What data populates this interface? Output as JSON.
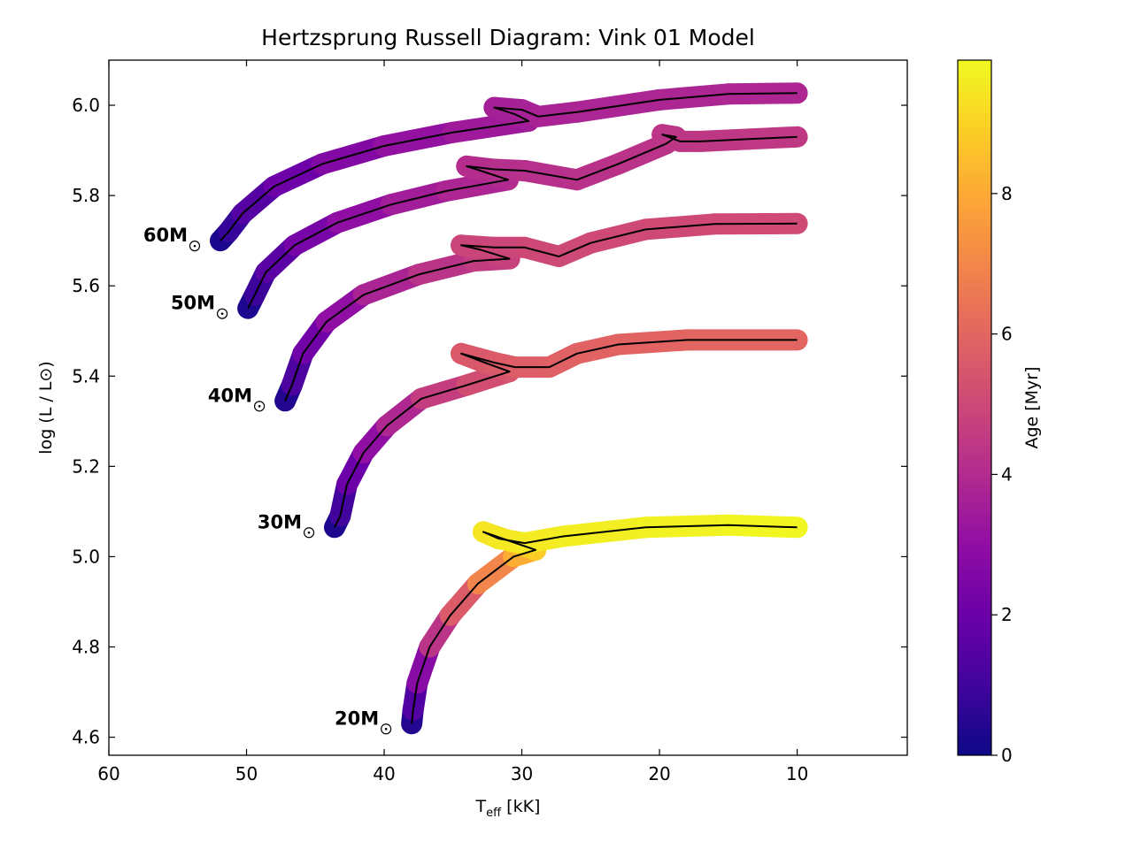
{
  "chart_data": {
    "type": "line",
    "title": "Hertzsprung Russell Diagram: Vink 01 Model",
    "xlabel": {
      "main": "T",
      "sub": "eff",
      "rest": " [kK]"
    },
    "ylabel": "log (L / L⊙)",
    "xlim": [
      60,
      2
    ],
    "ylim": [
      4.56,
      6.1
    ],
    "x_reversed": true,
    "grid": false,
    "x_ticks": [
      60,
      50,
      40,
      30,
      20,
      10
    ],
    "y_ticks": [
      4.6,
      4.8,
      5.0,
      5.2,
      5.4,
      5.6,
      5.8,
      6.0
    ],
    "x_tick_labels": [
      "60",
      "50",
      "40",
      "30",
      "20",
      "10"
    ],
    "y_tick_labels": [
      "4.6",
      "4.8",
      "5.0",
      "5.2",
      "5.4",
      "5.6",
      "5.8",
      "6.0"
    ],
    "colorbar": {
      "label": "Age [Myr]",
      "colormap": "plasma",
      "range": [
        0,
        9.9
      ],
      "ticks": [
        0,
        2,
        4,
        6,
        8
      ],
      "tick_labels": [
        "0",
        "2",
        "4",
        "6",
        "8"
      ]
    },
    "series": [
      {
        "label": "20M",
        "track": [
          {
            "x": 38.0,
            "y": 4.63,
            "age": 0.0
          },
          {
            "x": 37.9,
            "y": 4.66,
            "age": 0.8
          },
          {
            "x": 37.6,
            "y": 4.72,
            "age": 2.0
          },
          {
            "x": 36.7,
            "y": 4.8,
            "age": 3.6
          },
          {
            "x": 35.2,
            "y": 4.87,
            "age": 5.0
          },
          {
            "x": 33.2,
            "y": 4.94,
            "age": 6.3
          },
          {
            "x": 30.6,
            "y": 5.0,
            "age": 7.6
          },
          {
            "x": 29.0,
            "y": 5.015,
            "age": 8.6
          },
          {
            "x": 31.4,
            "y": 5.04,
            "age": 9.2
          },
          {
            "x": 32.8,
            "y": 5.055,
            "age": 9.4
          },
          {
            "x": 31.7,
            "y": 5.04,
            "age": 9.5
          },
          {
            "x": 29.8,
            "y": 5.03,
            "age": 9.55
          },
          {
            "x": 27.0,
            "y": 5.045,
            "age": 9.6
          },
          {
            "x": 21.0,
            "y": 5.065,
            "age": 9.7
          },
          {
            "x": 15.0,
            "y": 5.07,
            "age": 9.8
          },
          {
            "x": 10.0,
            "y": 5.065,
            "age": 9.85
          }
        ]
      },
      {
        "label": "30M",
        "track": [
          {
            "x": 43.6,
            "y": 5.065,
            "age": 0.0
          },
          {
            "x": 43.2,
            "y": 5.09,
            "age": 0.6
          },
          {
            "x": 42.7,
            "y": 5.16,
            "age": 1.5
          },
          {
            "x": 41.5,
            "y": 5.23,
            "age": 2.5
          },
          {
            "x": 39.8,
            "y": 5.29,
            "age": 3.5
          },
          {
            "x": 37.3,
            "y": 5.35,
            "age": 4.3
          },
          {
            "x": 34.0,
            "y": 5.38,
            "age": 5.0
          },
          {
            "x": 30.9,
            "y": 5.41,
            "age": 5.4
          },
          {
            "x": 32.7,
            "y": 5.43,
            "age": 5.5
          },
          {
            "x": 34.4,
            "y": 5.45,
            "age": 5.55
          },
          {
            "x": 32.0,
            "y": 5.43,
            "age": 5.6
          },
          {
            "x": 30.5,
            "y": 5.42,
            "age": 5.7
          },
          {
            "x": 28.0,
            "y": 5.42,
            "age": 5.8
          },
          {
            "x": 26.0,
            "y": 5.45,
            "age": 5.85
          },
          {
            "x": 23.0,
            "y": 5.47,
            "age": 5.9
          },
          {
            "x": 18.0,
            "y": 5.48,
            "age": 5.95
          },
          {
            "x": 10.0,
            "y": 5.48,
            "age": 6.0
          }
        ]
      },
      {
        "label": "40M",
        "track": [
          {
            "x": 47.2,
            "y": 5.345,
            "age": 0.0
          },
          {
            "x": 46.7,
            "y": 5.38,
            "age": 0.8
          },
          {
            "x": 45.9,
            "y": 5.45,
            "age": 1.7
          },
          {
            "x": 44.2,
            "y": 5.52,
            "age": 2.6
          },
          {
            "x": 41.5,
            "y": 5.58,
            "age": 3.4
          },
          {
            "x": 37.5,
            "y": 5.625,
            "age": 4.1
          },
          {
            "x": 33.5,
            "y": 5.655,
            "age": 4.5
          },
          {
            "x": 30.9,
            "y": 5.66,
            "age": 4.7
          },
          {
            "x": 33.0,
            "y": 5.68,
            "age": 4.8
          },
          {
            "x": 34.4,
            "y": 5.69,
            "age": 4.85
          },
          {
            "x": 32.0,
            "y": 5.685,
            "age": 4.9
          },
          {
            "x": 29.8,
            "y": 5.685,
            "age": 4.95
          },
          {
            "x": 27.3,
            "y": 5.665,
            "age": 5.0
          },
          {
            "x": 25.0,
            "y": 5.695,
            "age": 5.02
          },
          {
            "x": 21.0,
            "y": 5.725,
            "age": 5.05
          },
          {
            "x": 16.0,
            "y": 5.737,
            "age": 5.08
          },
          {
            "x": 10.0,
            "y": 5.738,
            "age": 5.1
          }
        ]
      },
      {
        "label": "50M",
        "track": [
          {
            "x": 49.9,
            "y": 5.55,
            "age": 0.0
          },
          {
            "x": 49.4,
            "y": 5.58,
            "age": 0.6
          },
          {
            "x": 48.6,
            "y": 5.63,
            "age": 1.2
          },
          {
            "x": 46.5,
            "y": 5.69,
            "age": 2.0
          },
          {
            "x": 43.4,
            "y": 5.74,
            "age": 2.7
          },
          {
            "x": 39.5,
            "y": 5.78,
            "age": 3.3
          },
          {
            "x": 35.5,
            "y": 5.81,
            "age": 3.7
          },
          {
            "x": 31.0,
            "y": 5.835,
            "age": 3.9
          },
          {
            "x": 33.0,
            "y": 5.855,
            "age": 4.0
          },
          {
            "x": 34.0,
            "y": 5.865,
            "age": 4.05
          },
          {
            "x": 32.0,
            "y": 5.858,
            "age": 4.1
          },
          {
            "x": 29.8,
            "y": 5.855,
            "age": 4.15
          },
          {
            "x": 26.0,
            "y": 5.835,
            "age": 4.2
          },
          {
            "x": 23.0,
            "y": 5.87,
            "age": 4.25
          },
          {
            "x": 19.5,
            "y": 5.915,
            "age": 4.3
          },
          {
            "x": 18.8,
            "y": 5.93,
            "age": 4.32
          },
          {
            "x": 19.8,
            "y": 5.935,
            "age": 4.34
          },
          {
            "x": 18.5,
            "y": 5.92,
            "age": 4.36
          },
          {
            "x": 17.0,
            "y": 5.92,
            "age": 4.38
          },
          {
            "x": 13.5,
            "y": 5.925,
            "age": 4.42
          },
          {
            "x": 10.0,
            "y": 5.93,
            "age": 4.45
          }
        ]
      },
      {
        "label": "60M",
        "track": [
          {
            "x": 51.9,
            "y": 5.7,
            "age": 0.0
          },
          {
            "x": 51.3,
            "y": 5.72,
            "age": 0.5
          },
          {
            "x": 50.3,
            "y": 5.76,
            "age": 1.1
          },
          {
            "x": 48.0,
            "y": 5.82,
            "age": 1.8
          },
          {
            "x": 44.5,
            "y": 5.87,
            "age": 2.4
          },
          {
            "x": 40.0,
            "y": 5.91,
            "age": 2.9
          },
          {
            "x": 35.0,
            "y": 5.94,
            "age": 3.3
          },
          {
            "x": 29.5,
            "y": 5.965,
            "age": 3.5
          },
          {
            "x": 30.5,
            "y": 5.98,
            "age": 3.55
          },
          {
            "x": 32.0,
            "y": 5.995,
            "age": 3.6
          },
          {
            "x": 30.0,
            "y": 5.99,
            "age": 3.65
          },
          {
            "x": 28.8,
            "y": 5.975,
            "age": 3.7
          },
          {
            "x": 26.0,
            "y": 5.985,
            "age": 3.75
          },
          {
            "x": 20.0,
            "y": 6.012,
            "age": 3.8
          },
          {
            "x": 15.0,
            "y": 6.025,
            "age": 3.83
          },
          {
            "x": 10.0,
            "y": 6.027,
            "age": 3.85
          }
        ]
      }
    ]
  }
}
